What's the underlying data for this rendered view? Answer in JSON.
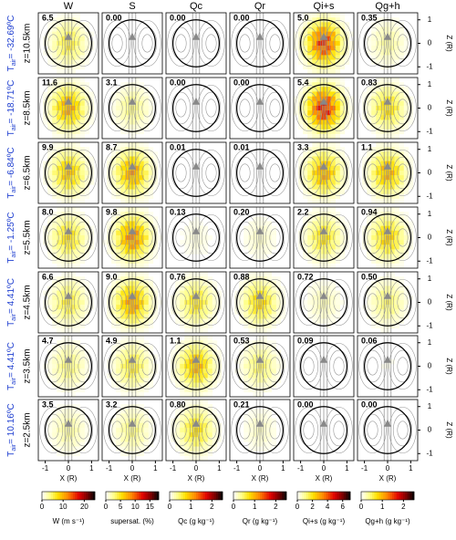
{
  "chart_data": {
    "type": "heatmap-grid",
    "columns": [
      "W",
      "S",
      "Qc",
      "Qr",
      "Qi+s",
      "Qg+h"
    ],
    "rows": [
      {
        "z": "z=10.5km",
        "tair": "= -32.69ºC",
        "peaks": [
          "6.5",
          "0.00",
          "0.00",
          "0.00",
          "5.0",
          "0.35"
        ]
      },
      {
        "z": "z=8.5km",
        "tair": "= -18.71ºC",
        "peaks": [
          "11.6",
          "3.1",
          "0.00",
          "0.00",
          "5.4",
          "0.83"
        ]
      },
      {
        "z": "z=6.5km",
        "tair": "= -6.84ºC",
        "peaks": [
          "9.9",
          "8.7",
          "0.01",
          "0.01",
          "3.3",
          "1.1"
        ]
      },
      {
        "z": "z=5.5km",
        "tair": "= -1.25ºC",
        "peaks": [
          "8.0",
          "9.8",
          "0.13",
          "0.20",
          "2.2",
          "0.94"
        ]
      },
      {
        "z": "z=4.5km",
        "tair": "= 4.41ºC",
        "peaks": [
          "6.6",
          "9.0",
          "0.76",
          "0.88",
          "0.72",
          "0.50"
        ]
      },
      {
        "z": "z=3.5km",
        "tair": "= 4.41ºC",
        "peaks": [
          "4.7",
          "4.9",
          "1.1",
          "0.53",
          "0.09",
          "0.06"
        ]
      },
      {
        "z": "z=2.5km",
        "tair": "= 10.16ºC",
        "peaks": [
          "3.5",
          "3.2",
          "0.80",
          "0.21",
          "0.00",
          "0.00"
        ]
      }
    ],
    "tair_symbol": "T",
    "tair_sub": "air",
    "x_label": "X (R)",
    "y_label": "Z (R)",
    "xlim": [
      -1.3,
      1.3
    ],
    "ylim": [
      -1.3,
      1.3
    ],
    "xticks": [
      -1,
      0,
      1
    ],
    "yticks": [
      -1,
      0,
      1
    ],
    "colorbars": [
      {
        "label": "W (m s⁻¹)",
        "lim": [
          0,
          25
        ],
        "ticks": [
          0,
          10,
          20
        ]
      },
      {
        "label": "supersat. (%)",
        "lim": [
          0,
          18
        ],
        "ticks": [
          0,
          5,
          10,
          15
        ]
      },
      {
        "label": "Qc (g kg⁻¹)",
        "lim": [
          0,
          2.5
        ],
        "ticks": [
          0,
          1,
          2
        ]
      },
      {
        "label": "Qr (g kg⁻¹)",
        "lim": [
          0,
          2.5
        ],
        "ticks": [
          0,
          1,
          2
        ]
      },
      {
        "label": "Qi+s (g kg⁻¹)",
        "lim": [
          0,
          7
        ],
        "ticks": [
          0,
          2,
          4,
          6
        ]
      },
      {
        "label": "Qg+h (g kg⁻¹)",
        "lim": [
          0,
          2.5
        ],
        "ticks": [
          0,
          1,
          2
        ]
      }
    ]
  }
}
